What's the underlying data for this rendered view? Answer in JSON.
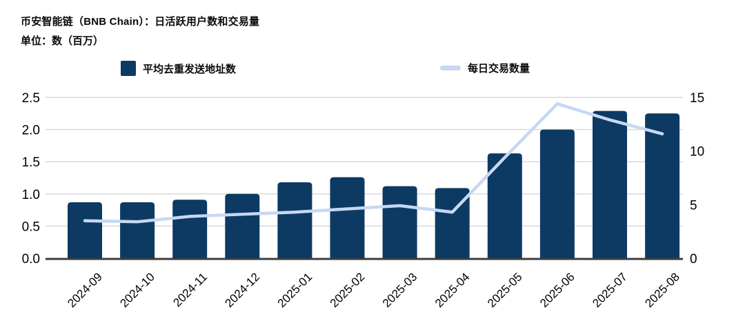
{
  "header": {
    "title": "币安智能链（BNB Chain）：日活跃用户数和交易量",
    "subtitle": "单位：数（百万）"
  },
  "colors": {
    "bar": "#0c3a63",
    "line": "#c7d8f3",
    "grid": "#d9d9d9",
    "axis": "#3d3d3d",
    "text": "#0a0a0a",
    "background": "#ffffff"
  },
  "chart_data": {
    "type": "bar+line combo",
    "title": "币安智能链（BNB Chain）：日活跃用户数和交易量",
    "unit_label": "单位：数（百万）",
    "categories": [
      "2024-09",
      "2024-10",
      "2024-11",
      "2024-12",
      "2025-01",
      "2025-02",
      "2025-03",
      "2025-04",
      "2025-05",
      "2025-06",
      "2025-07",
      "2025-08"
    ],
    "series": [
      {
        "name": "平均去重发送地址数",
        "type": "bar",
        "axis": "left",
        "color": "#0c3a63",
        "values": [
          0.87,
          0.87,
          0.91,
          1.0,
          1.18,
          1.26,
          1.12,
          1.09,
          1.63,
          2.0,
          2.29,
          2.25
        ]
      },
      {
        "name": "每日交易数量",
        "type": "line",
        "axis": "right",
        "color": "#c7d8f3",
        "values": [
          3.5,
          3.4,
          3.9,
          4.1,
          4.3,
          4.6,
          4.9,
          4.3,
          9.4,
          14.4,
          12.9,
          11.6
        ]
      }
    ],
    "left_axis": {
      "min": 0,
      "max": 2.5,
      "ticks": [
        "0.0",
        "0.5",
        "1.0",
        "1.5",
        "2.0",
        "2.5"
      ]
    },
    "right_axis": {
      "min": 0,
      "max": 15,
      "ticks": [
        "0",
        "5",
        "10",
        "15"
      ]
    },
    "grid": true,
    "legend_position": "top"
  }
}
